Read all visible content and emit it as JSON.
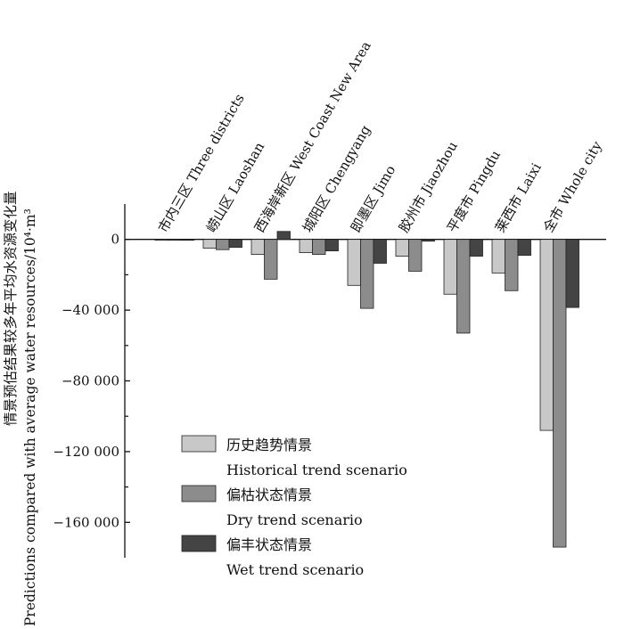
{
  "chart_data": {
    "type": "bar",
    "categories": [
      "市内三区 Three districts",
      "崂山区 Laoshan",
      "西海岸新区 West Coast New Area",
      "城阳区 Chengyang",
      "即墨区 Jimo",
      "胶州市 Jiaozhou",
      "平度市 Pingdu",
      "莱西市 Laixi",
      "全市 Whole city"
    ],
    "series": [
      {
        "name": "历史趋势情景 Historical trend scenario",
        "name_cn": "历史趋势情景",
        "name_en": "Historical trend scenario",
        "color": "#c8c8c8",
        "values": [
          -300,
          -5000,
          -8500,
          -7500,
          -26000,
          -9500,
          -31000,
          -19000,
          -108000
        ]
      },
      {
        "name": "偏枯状态情景 Dry trend scenario",
        "name_cn": "偏枯状态情景",
        "name_en": "Dry trend scenario",
        "color": "#8c8c8c",
        "values": [
          -300,
          -5800,
          -22500,
          -8500,
          -39000,
          -18000,
          -53000,
          -29000,
          -174000
        ]
      },
      {
        "name": "偏丰状态情景 Wet trend scenario",
        "name_cn": "偏丰状态情景",
        "name_en": "Wet trend scenario",
        "color": "#444444",
        "values": [
          -200,
          -4500,
          4500,
          -6500,
          -13500,
          -1000,
          -9500,
          -9000,
          -38500
        ]
      }
    ],
    "ylabel_cn": "情景预估结果较多年平均水资源变化量",
    "ylabel_en": "Predictions compared with average water resources/10⁴·m³",
    "yticks": [
      0,
      -40000,
      -80000,
      -120000,
      -160000
    ],
    "ytick_labels": [
      "0",
      "−40 000",
      "−80 000",
      "−120 000",
      "−160 000"
    ],
    "ylim": [
      -180000,
      20000
    ],
    "grid": false,
    "legend_position": "bottom-left-inside"
  },
  "colors": {
    "axis": "#111111",
    "bar_stroke": "#222222"
  }
}
